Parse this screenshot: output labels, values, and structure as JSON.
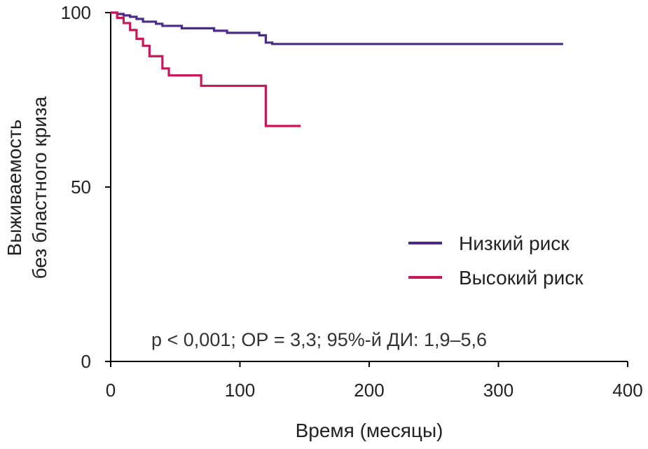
{
  "chart_data": {
    "type": "line",
    "step": true,
    "title": "",
    "xlabel": "Время (месяцы)",
    "ylabel_lines": [
      "Выживаемость",
      "без бластного криза"
    ],
    "xlim": [
      0,
      400
    ],
    "ylim": [
      0,
      100
    ],
    "x_ticks": [
      0,
      100,
      200,
      300,
      400
    ],
    "x_tick_labels": [
      "0",
      "100",
      "200",
      "300",
      "400"
    ],
    "y_ticks": [
      0,
      50,
      100
    ],
    "y_tick_labels": [
      "0",
      "50",
      "100"
    ],
    "grid": false,
    "legend_position": "right",
    "series": [
      {
        "name": "Низкий риск",
        "color": "#4b2a8c",
        "points": [
          [
            0,
            100
          ],
          [
            5,
            99.6
          ],
          [
            10,
            99.2
          ],
          [
            15,
            98.8
          ],
          [
            20,
            98.2
          ],
          [
            25,
            97.4
          ],
          [
            35,
            96.8
          ],
          [
            40,
            96.2
          ],
          [
            55,
            95.5
          ],
          [
            80,
            94.8
          ],
          [
            90,
            94.2
          ],
          [
            115,
            93.5
          ],
          [
            120,
            91.4
          ],
          [
            125,
            91
          ],
          [
            350,
            91
          ]
        ]
      },
      {
        "name": "Высокий риск",
        "color": "#c8185a",
        "points": [
          [
            0,
            100
          ],
          [
            5,
            98.5
          ],
          [
            10,
            97
          ],
          [
            15,
            95
          ],
          [
            20,
            92.5
          ],
          [
            25,
            90.5
          ],
          [
            30,
            87.5
          ],
          [
            40,
            84
          ],
          [
            45,
            82
          ],
          [
            70,
            79
          ],
          [
            120,
            67.5
          ],
          [
            147,
            67.5
          ]
        ]
      }
    ],
    "annotation": "p < 0,001; ОР = 3,3; 95%-й ДИ: 1,9–5,6"
  }
}
